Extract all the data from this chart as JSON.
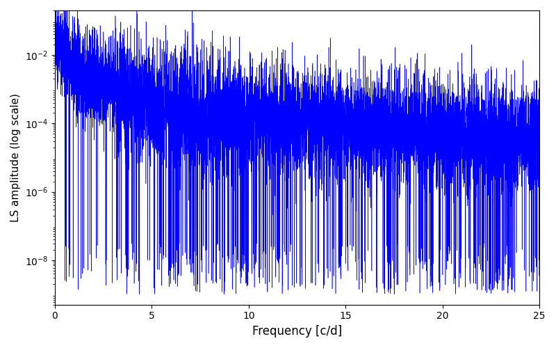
{
  "title": "",
  "xlabel": "Frequency [c/d]",
  "ylabel": "LS amplitude (log scale)",
  "xlim": [
    0,
    25
  ],
  "ylim": [
    5e-10,
    0.2
  ],
  "line_color": "#0000ff",
  "line_width": 0.4,
  "figsize": [
    8.0,
    5.0
  ],
  "dpi": 100,
  "n_points": 8000,
  "seed": 137,
  "background_color": "#ffffff",
  "yticks": [
    1e-08,
    1e-06,
    0.0001,
    0.01
  ],
  "xticks": [
    0,
    5,
    10,
    15,
    20,
    25
  ]
}
